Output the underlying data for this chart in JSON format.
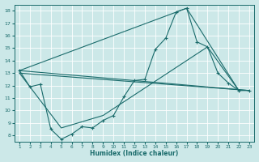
{
  "xlabel": "Humidex (Indice chaleur)",
  "bg_color": "#cce8e8",
  "grid_color": "#b8d8d8",
  "line_color": "#1a6b6b",
  "xlim": [
    0.5,
    23.5
  ],
  "ylim": [
    7.5,
    18.5
  ],
  "yticks": [
    8,
    9,
    10,
    11,
    12,
    13,
    14,
    15,
    16,
    17,
    18
  ],
  "xticks": [
    1,
    2,
    3,
    4,
    5,
    6,
    7,
    8,
    9,
    10,
    11,
    12,
    13,
    14,
    15,
    16,
    17,
    18,
    19,
    20,
    21,
    22,
    23
  ],
  "main_x": [
    1,
    2,
    3,
    4,
    5,
    6,
    7,
    8,
    9,
    10,
    11,
    12,
    13,
    14,
    15,
    16,
    17,
    18,
    19,
    20,
    21,
    22,
    23
  ],
  "main_y": [
    13.2,
    11.9,
    12.1,
    8.5,
    7.7,
    8.1,
    8.7,
    8.6,
    9.2,
    9.6,
    11.1,
    12.4,
    12.5,
    14.9,
    15.8,
    17.9,
    18.2,
    15.5,
    15.1,
    13.0,
    12.2,
    11.6,
    11.6
  ],
  "line2_x": [
    1,
    17,
    22
  ],
  "line2_y": [
    13.2,
    18.2,
    11.6
  ],
  "line3_x": [
    1,
    23
  ],
  "line3_y": [
    13.2,
    11.6
  ],
  "line4_x": [
    1,
    23
  ],
  "line4_y": [
    13.0,
    11.6
  ],
  "line5_x": [
    1,
    5,
    9,
    19,
    22
  ],
  "line5_y": [
    13.0,
    8.6,
    9.6,
    15.1,
    11.6
  ]
}
